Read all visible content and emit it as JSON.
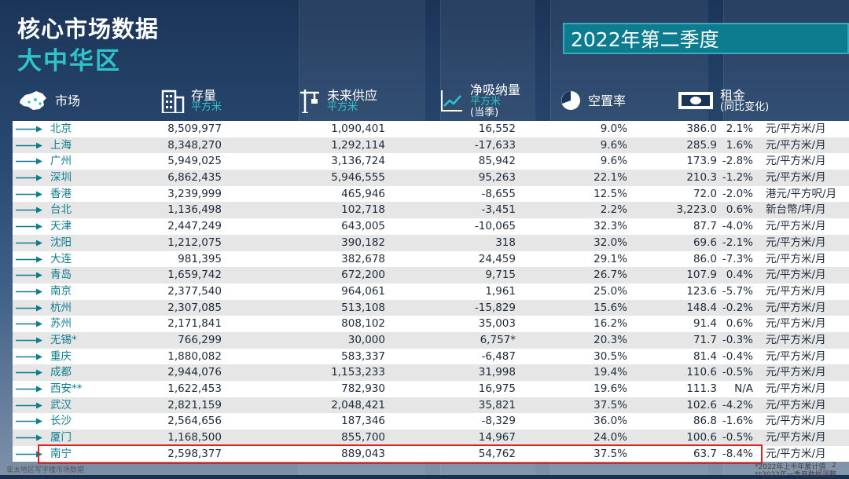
{
  "header": {
    "title": "核心市场数据",
    "subtitle": "大中华区",
    "quarter": "2022年第二季度"
  },
  "columns": {
    "market": "市场",
    "stock": "存量",
    "stock_unit": "平方米",
    "future": "未来供应",
    "future_unit": "平方米",
    "absorption": "净吸纳量",
    "absorption_unit": "平方米",
    "absorption_note": "(当季)",
    "vacancy": "空置率",
    "rent": "租金",
    "rent_note": "(同比变化)"
  },
  "rows": [
    {
      "city": "北京",
      "stock": "8,509,977",
      "future": "1,090,401",
      "absorption": "16,552",
      "vacancy": "9.0%",
      "rent": "386.0",
      "change": "2.1%",
      "unit": "元/平方米/月"
    },
    {
      "city": "上海",
      "stock": "8,348,270",
      "future": "1,292,114",
      "absorption": "-17,633",
      "vacancy": "9.6%",
      "rent": "285.9",
      "change": "1.6%",
      "unit": "元/平方米/月"
    },
    {
      "city": "广州",
      "stock": "5,949,025",
      "future": "3,136,724",
      "absorption": "85,942",
      "vacancy": "9.6%",
      "rent": "173.9",
      "change": "-2.8%",
      "unit": "元/平方米/月"
    },
    {
      "city": "深圳",
      "stock": "6,862,435",
      "future": "5,946,555",
      "absorption": "95,263",
      "vacancy": "22.1%",
      "rent": "210.3",
      "change": "-1.2%",
      "unit": "元/平方米/月"
    },
    {
      "city": "香港",
      "stock": "3,239,999",
      "future": "465,946",
      "absorption": "-8,655",
      "vacancy": "12.5%",
      "rent": "72.0",
      "change": "-2.0%",
      "unit": "港元/平方呎/月"
    },
    {
      "city": "台北",
      "stock": "1,136,498",
      "future": "102,718",
      "absorption": "-3,451",
      "vacancy": "2.2%",
      "rent": "3,223.0",
      "change": "0.6%",
      "unit": "新台幣/坪/月"
    },
    {
      "city": "天津",
      "stock": "2,447,249",
      "future": "643,005",
      "absorption": "-10,065",
      "vacancy": "32.3%",
      "rent": "87.7",
      "change": "-4.0%",
      "unit": "元/平方米/月"
    },
    {
      "city": "沈阳",
      "stock": "1,212,075",
      "future": "390,182",
      "absorption": "318",
      "vacancy": "32.0%",
      "rent": "69.6",
      "change": "-2.1%",
      "unit": "元/平方米/月"
    },
    {
      "city": "大连",
      "stock": "981,395",
      "future": "382,678",
      "absorption": "24,459",
      "vacancy": "29.1%",
      "rent": "86.0",
      "change": "-7.3%",
      "unit": "元/平方米/月"
    },
    {
      "city": "青岛",
      "stock": "1,659,742",
      "future": "672,200",
      "absorption": "9,715",
      "vacancy": "26.7%",
      "rent": "107.9",
      "change": "0.4%",
      "unit": "元/平方米/月"
    },
    {
      "city": "南京",
      "stock": "2,377,540",
      "future": "964,061",
      "absorption": "1,961",
      "vacancy": "25.0%",
      "rent": "123.6",
      "change": "-5.7%",
      "unit": "元/平方米/月"
    },
    {
      "city": "杭州",
      "stock": "2,307,085",
      "future": "513,108",
      "absorption": "-15,829",
      "vacancy": "15.6%",
      "rent": "148.4",
      "change": "-0.2%",
      "unit": "元/平方米/月"
    },
    {
      "city": "苏州",
      "stock": "2,171,841",
      "future": "808,102",
      "absorption": "35,003",
      "vacancy": "16.2%",
      "rent": "91.4",
      "change": "0.6%",
      "unit": "元/平方米/月"
    },
    {
      "city": "无锡*",
      "stock": "766,299",
      "future": "30,000",
      "absorption": "6,757*",
      "vacancy": "20.3%",
      "rent": "71.7",
      "change": "-0.3%",
      "unit": "元/平方米/月"
    },
    {
      "city": "重庆",
      "stock": "1,880,082",
      "future": "583,337",
      "absorption": "-6,487",
      "vacancy": "30.5%",
      "rent": "81.4",
      "change": "-0.4%",
      "unit": "元/平方米/月"
    },
    {
      "city": "成都",
      "stock": "2,944,076",
      "future": "1,153,233",
      "absorption": "31,998",
      "vacancy": "19.4%",
      "rent": "110.6",
      "change": "-0.5%",
      "unit": "元/平方米/月"
    },
    {
      "city": "西安**",
      "stock": "1,622,453",
      "future": "782,930",
      "absorption": "16,975",
      "vacancy": "19.6%",
      "rent": "111.3",
      "change": "N/A",
      "unit": "元/平方米/月"
    },
    {
      "city": "武汉",
      "stock": "2,821,159",
      "future": "2,048,421",
      "absorption": "35,821",
      "vacancy": "37.5%",
      "rent": "102.6",
      "change": "-4.2%",
      "unit": "元/平方米/月"
    },
    {
      "city": "长沙",
      "stock": "2,564,656",
      "future": "187,346",
      "absorption": "-8,329",
      "vacancy": "36.0%",
      "rent": "86.8",
      "change": "-1.6%",
      "unit": "元/平方米/月"
    },
    {
      "city": "厦门",
      "stock": "1,168,500",
      "future": "855,700",
      "absorption": "14,967",
      "vacancy": "24.0%",
      "rent": "100.6",
      "change": "-0.5%",
      "unit": "元/平方米/月"
    },
    {
      "city": "南宁",
      "stock": "2,598,377",
      "future": "889,043",
      "absorption": "54,762",
      "vacancy": "37.5%",
      "rent": "63.7",
      "change": "-8.4%",
      "unit": "元/平方米/月"
    }
  ],
  "footer": {
    "left_note": "亚太地区写字楼市场数据",
    "right_note1": "*2022年上半年累计值",
    "right_note2": "**2022年一季度数据调整",
    "page": "2"
  },
  "colors": {
    "accent": "#2ec4c9",
    "banner": "#0e7c8f",
    "highlight": "#e0201c"
  }
}
